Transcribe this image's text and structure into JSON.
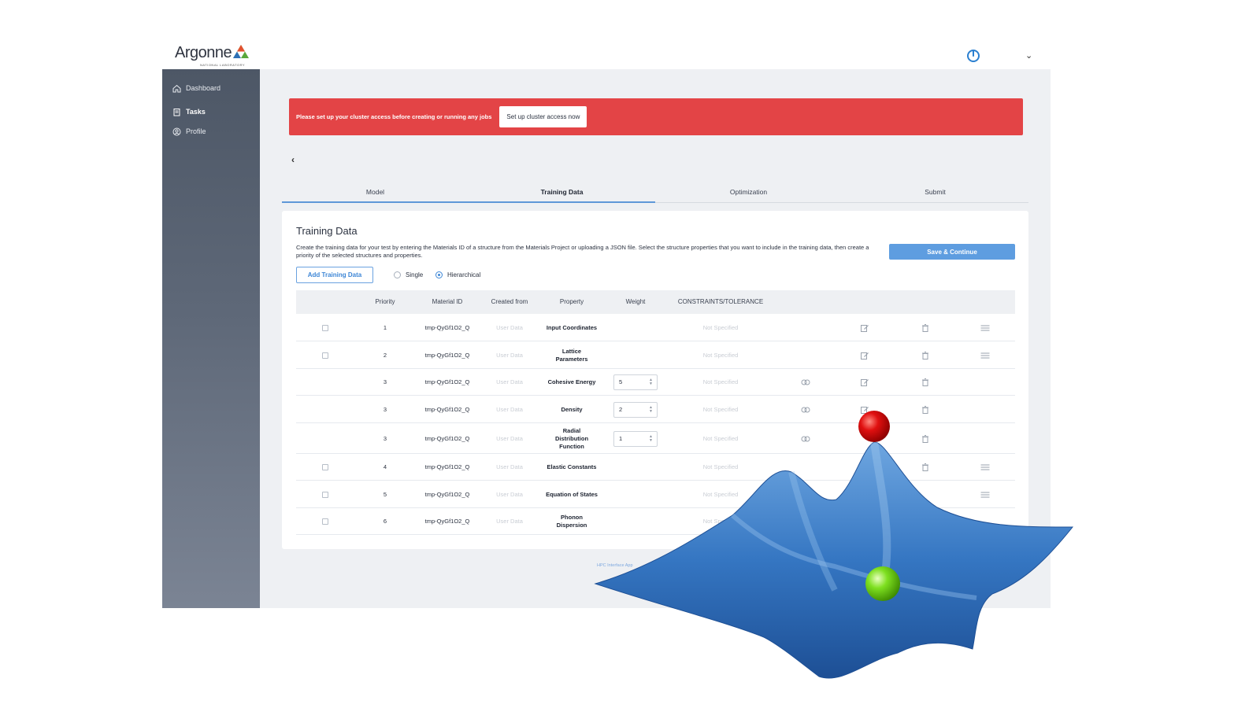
{
  "header": {
    "logo_text": "Argonne",
    "logo_subtitle": "NATIONAL LABORATORY",
    "user_caret": "⌄"
  },
  "sidebar": {
    "items": [
      {
        "label": "Dashboard",
        "icon": "home-icon",
        "active": false
      },
      {
        "label": "Tasks",
        "icon": "clipboard-icon",
        "active": true
      },
      {
        "label": "Profile",
        "icon": "user-circle-icon",
        "active": false
      }
    ]
  },
  "alert": {
    "text": "Please set up your cluster access before creating or running any jobs",
    "button": "Set up cluster access now",
    "color": "#e34446"
  },
  "nav": {
    "back": "‹"
  },
  "tabs": [
    {
      "label": "Model",
      "active": false
    },
    {
      "label": "Training Data",
      "active": true
    },
    {
      "label": "Optimization",
      "active": false
    },
    {
      "label": "Submit",
      "active": false
    }
  ],
  "card": {
    "title": "Training Data",
    "description": "Create the training data for your test by entering the Materials ID of a structure from the Materials Project or uploading a JSON file. Select the structure properties that you want to include in the training data, then create a priority of the selected structures and properties.",
    "save_button": "Save & Continue",
    "add_button": "Add Training Data",
    "mode_options": [
      {
        "label": "Single",
        "selected": false
      },
      {
        "label": "Hierarchical",
        "selected": true
      }
    ]
  },
  "table": {
    "headers": [
      "Priority",
      "Material ID",
      "Created from",
      "Property",
      "Weight",
      "CONSTRAINTS/TOLERANCE"
    ],
    "rows": [
      {
        "check": true,
        "priority": "1",
        "material": "tmp-QyGf1O2_Q",
        "created": "User Data",
        "property": "Input Coordinates",
        "weight": "",
        "constraint": "Not Specified",
        "link": false,
        "edit": true,
        "del": true,
        "drag": true
      },
      {
        "check": true,
        "priority": "2",
        "material": "tmp-QyGf1O2_Q",
        "created": "User Data",
        "property": "Lattice Parameters",
        "weight": "",
        "constraint": "Not Specified",
        "link": false,
        "edit": true,
        "del": true,
        "drag": true
      },
      {
        "check": false,
        "priority": "3",
        "material": "tmp-QyGf1O2_Q",
        "created": "User Data",
        "property": "Cohesive Energy",
        "weight": "5",
        "constraint": "Not Specified",
        "link": true,
        "edit": true,
        "del": true,
        "drag": false
      },
      {
        "check": false,
        "priority": "3",
        "material": "tmp-QyGf1O2_Q",
        "created": "User Data",
        "property": "Density",
        "weight": "2",
        "constraint": "Not Specified",
        "link": true,
        "edit": true,
        "del": true,
        "drag": false
      },
      {
        "check": false,
        "priority": "3",
        "material": "tmp-QyGf1O2_Q",
        "created": "User Data",
        "property": "Radial Distribution Function",
        "weight": "1",
        "constraint": "Not Specified",
        "link": true,
        "edit": false,
        "del": true,
        "drag": false
      },
      {
        "check": true,
        "priority": "4",
        "material": "tmp-QyGf1O2_Q",
        "created": "User Data",
        "property": "Elastic Constants",
        "weight": "",
        "constraint": "Not Specified",
        "link": false,
        "edit": false,
        "del": true,
        "drag": true
      },
      {
        "check": true,
        "priority": "5",
        "material": "tmp-QyGf1O2_Q",
        "created": "User Data",
        "property": "Equation of States",
        "weight": "",
        "constraint": "Not Specified",
        "link": false,
        "edit": false,
        "del": false,
        "drag": true
      },
      {
        "check": true,
        "priority": "6",
        "material": "tmp-QyGf1O2_Q",
        "created": "User Data",
        "property": "Phonon Dispersion",
        "weight": "",
        "constraint": "Not Specified",
        "link": false,
        "edit": false,
        "del": false,
        "drag": false
      }
    ]
  },
  "footer": {
    "link": "HPC Interface App"
  },
  "illustration": {
    "peak_ball_color": "#e01010",
    "valley_ball_color": "#7ee020",
    "surface_color": "#2f6db5"
  },
  "colors": {
    "accent": "#5e9de0",
    "sidebar": "#4d5766",
    "alert": "#e34446"
  }
}
